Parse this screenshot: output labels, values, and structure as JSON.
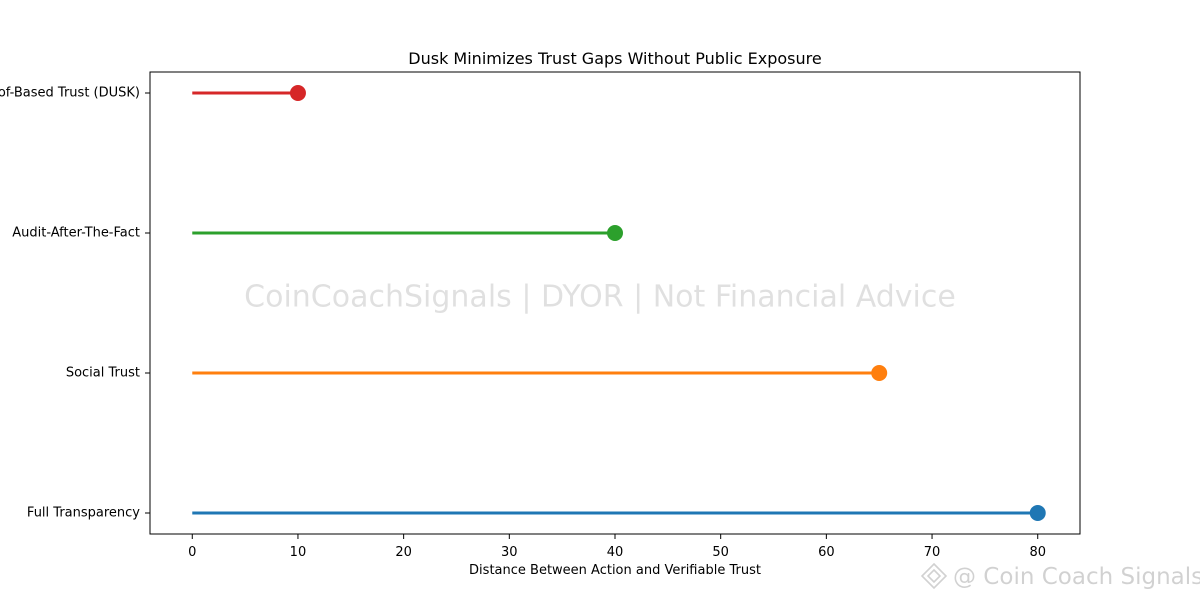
{
  "chart_data": {
    "type": "lollipop",
    "title": "Dusk Minimizes Trust Gaps Without Public Exposure",
    "xlabel": "Distance Between Action and Verifiable Trust",
    "ylabel": "",
    "xlim": [
      -4,
      84
    ],
    "xticks": [
      0,
      10,
      20,
      30,
      40,
      50,
      60,
      70,
      80
    ],
    "grid": false,
    "categories": [
      "Full Transparency",
      "Social Trust",
      "Audit-After-The-Fact",
      "Proof-Based Trust (DUSK)"
    ],
    "values": [
      80,
      65,
      40,
      10
    ],
    "colors": [
      "#1f77b4",
      "#ff7f0e",
      "#2ca02c",
      "#d62728"
    ]
  },
  "watermark": "CoinCoachSignals | DYOR | Not Financial Advice",
  "brand": {
    "text": "@ Coin Coach Signals",
    "icon": "diamond-logo-icon"
  }
}
